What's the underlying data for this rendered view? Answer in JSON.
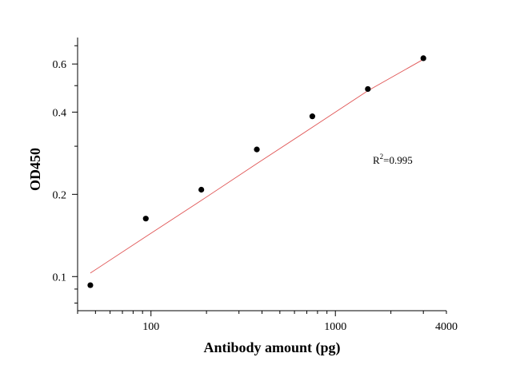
{
  "chart_data": {
    "type": "scatter",
    "title": "",
    "xlabel": "Antibody amount (pg)",
    "ylabel": "OD450",
    "x_scale": "log",
    "y_scale": "log",
    "xlim": [
      40,
      4000
    ],
    "ylim": [
      0.075,
      0.75
    ],
    "x_tick_labels": [
      {
        "value": 100,
        "label": "100"
      },
      {
        "value": 1000,
        "label": "1000"
      },
      {
        "value": 4000,
        "label": "4000"
      }
    ],
    "y_tick_labels": [
      {
        "value": 0.1,
        "label": "0.1"
      },
      {
        "value": 0.2,
        "label": "0.2"
      },
      {
        "value": 0.4,
        "label": "0.4"
      },
      {
        "value": 0.6,
        "label": "0.6"
      }
    ],
    "points": [
      {
        "x": 46.9,
        "y": 0.093
      },
      {
        "x": 93.75,
        "y": 0.163
      },
      {
        "x": 187.5,
        "y": 0.208
      },
      {
        "x": 375,
        "y": 0.292
      },
      {
        "x": 750,
        "y": 0.386
      },
      {
        "x": 1500,
        "y": 0.486
      },
      {
        "x": 3000,
        "y": 0.63
      }
    ],
    "fit_curve": {
      "color": "#e05555",
      "x": [
        46.9,
        93.75,
        187.5,
        375,
        750,
        1500,
        3000
      ],
      "y": [
        0.103,
        0.14,
        0.19,
        0.259,
        0.352,
        0.479,
        0.624
      ]
    },
    "annotation": {
      "base": "R",
      "sup": "2",
      "rest": "=0.995"
    },
    "grid": false,
    "legend": "none"
  }
}
